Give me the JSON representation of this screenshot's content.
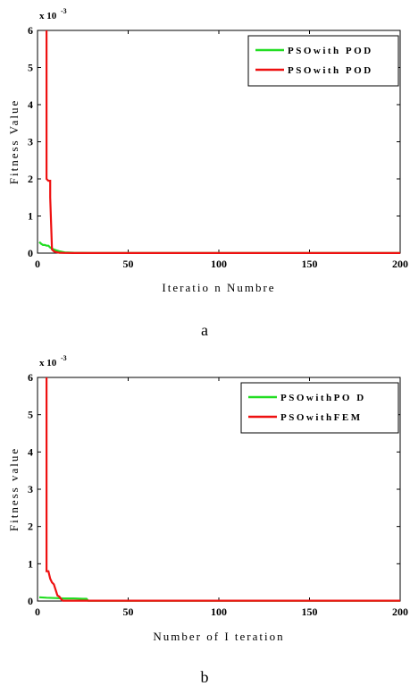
{
  "chart_data": [
    {
      "type": "line",
      "caption": "a",
      "xlabel": "Iteratio n Numbre",
      "ylabel": "Fitness  Value",
      "scale_label": "x 10",
      "scale_exponent": "-3",
      "xlim": [
        0,
        200
      ],
      "ylim": [
        0,
        6
      ],
      "x_ticks": [
        "0",
        "50",
        "100",
        "150",
        "200"
      ],
      "y_ticks": [
        "0",
        "1",
        "2",
        "3",
        "4",
        "5",
        "6"
      ],
      "legend_position": "top-right",
      "series": [
        {
          "name": "PSOwith POD",
          "color": "#22dd22",
          "x": [
            1,
            2,
            3,
            4,
            5,
            6,
            7,
            8,
            9,
            10,
            12,
            15,
            20,
            30,
            200
          ],
          "y": [
            0.3,
            0.25,
            0.22,
            0.22,
            0.2,
            0.2,
            0.15,
            0.12,
            0.1,
            0.08,
            0.05,
            0.02,
            0.01,
            0.005,
            0.005
          ]
        },
        {
          "name": "PSOwith POD",
          "color": "#ee1111",
          "x": [
            5,
            5,
            6,
            7,
            7,
            8,
            9,
            10,
            12,
            15,
            20,
            200
          ],
          "y": [
            6.0,
            2.0,
            1.95,
            1.95,
            1.5,
            0.1,
            0.05,
            0.03,
            0.01,
            0.005,
            0.002,
            0.002
          ]
        }
      ]
    },
    {
      "type": "line",
      "caption": "b",
      "xlabel": "Number  of I teration",
      "ylabel": "Fitness  value",
      "scale_label": "x 10",
      "scale_exponent": "-3",
      "xlim": [
        0,
        200
      ],
      "ylim": [
        0,
        6
      ],
      "x_ticks": [
        "0",
        "50",
        "100",
        "150",
        "200"
      ],
      "y_ticks": [
        "0",
        "1",
        "2",
        "3",
        "4",
        "5",
        "6"
      ],
      "legend_position": "top-right",
      "series": [
        {
          "name": "PSOwithPO D",
          "color": "#22dd22",
          "x": [
            1,
            5,
            10,
            15,
            20,
            25,
            27,
            28,
            200
          ],
          "y": [
            0.1,
            0.09,
            0.08,
            0.07,
            0.07,
            0.06,
            0.06,
            0.01,
            0.01
          ]
        },
        {
          "name": "PSOwithFEM",
          "color": "#ee1111",
          "x": [
            5,
            5,
            6,
            7,
            8,
            9,
            10,
            11,
            12,
            13,
            14,
            200
          ],
          "y": [
            6.0,
            0.8,
            0.8,
            0.6,
            0.5,
            0.45,
            0.3,
            0.15,
            0.12,
            0.05,
            0.01,
            0.01
          ]
        }
      ]
    }
  ]
}
